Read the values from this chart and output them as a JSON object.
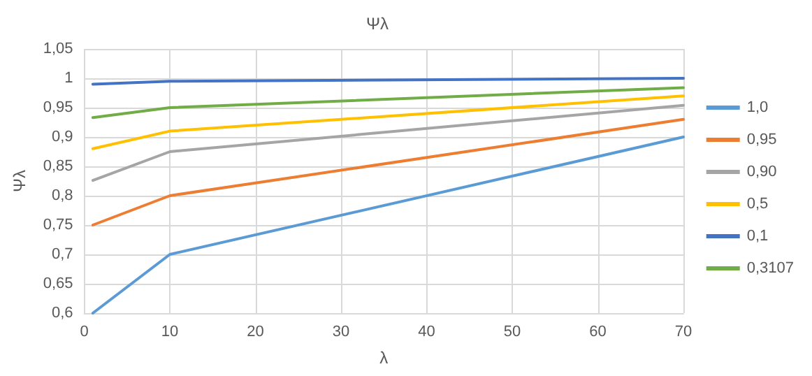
{
  "chart_data": {
    "type": "line",
    "title": "Ψλ",
    "xlabel": "λ",
    "ylabel": "Ψλ",
    "x": [
      1,
      10,
      70
    ],
    "series": [
      {
        "name": "1,0",
        "color": "#5b9bd5",
        "values": [
          0.6,
          0.7,
          0.9
        ]
      },
      {
        "name": "0,95",
        "color": "#ed7d31",
        "values": [
          0.75,
          0.8,
          0.93
        ]
      },
      {
        "name": "0,90",
        "color": "#a5a5a5",
        "values": [
          0.826,
          0.875,
          0.954
        ]
      },
      {
        "name": "0,5",
        "color": "#ffc000",
        "values": [
          0.88,
          0.91,
          0.97
        ]
      },
      {
        "name": "0,1",
        "color": "#4472c4",
        "values": [
          0.99,
          0.995,
          1.0
        ]
      },
      {
        "name": "0,3107",
        "color": "#70ad47",
        "values": [
          0.933,
          0.95,
          0.984
        ]
      }
    ],
    "xlim": [
      0,
      70
    ],
    "xticks": [
      0,
      10,
      20,
      30,
      40,
      50,
      60,
      70
    ],
    "ylim": [
      0.6,
      1.05
    ],
    "yticks": [
      {
        "value": 0.6,
        "label": "0,6"
      },
      {
        "value": 0.65,
        "label": "0,65"
      },
      {
        "value": 0.7,
        "label": "0,7"
      },
      {
        "value": 0.75,
        "label": "0,75"
      },
      {
        "value": 0.8,
        "label": "0,8"
      },
      {
        "value": 0.85,
        "label": "0,85"
      },
      {
        "value": 0.9,
        "label": "0,9"
      },
      {
        "value": 0.95,
        "label": "0,95"
      },
      {
        "value": 1,
        "label": "1"
      },
      {
        "value": 1.05,
        "label": "1,05"
      }
    ],
    "grid": true,
    "legend": "right",
    "marker": "none",
    "line_style": "solid"
  }
}
